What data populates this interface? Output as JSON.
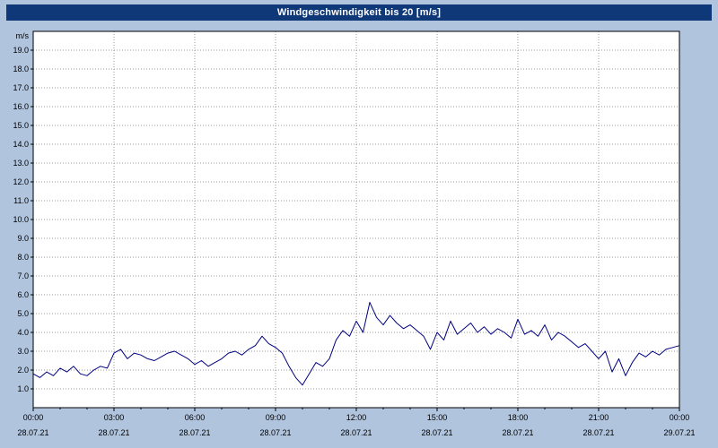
{
  "title": "Windgeschwindigkeit bis 20 [m/s]",
  "colors": {
    "background": "#b0c4de",
    "titlebar": "#0e3878",
    "title_text": "#ffffff",
    "plot_background": "#ffffff",
    "plot_frame": "#000000",
    "grid": "#999999",
    "line": "#000080",
    "tick_text": "#000000"
  },
  "chart_data": {
    "type": "line",
    "title": "Windgeschwindigkeit bis 20 [m/s]",
    "xlabel": "",
    "ylabel": "m/s",
    "ylim": [
      0,
      20
    ],
    "xlim_hours": [
      0,
      24
    ],
    "grid": "dotted",
    "legend": "none",
    "y_tick_labels": [
      "1.0",
      "2.0",
      "3.0",
      "4.0",
      "5.0",
      "6.0",
      "7.0",
      "8.0",
      "9.0",
      "10.0",
      "11.0",
      "12.0",
      "13.0",
      "14.0",
      "15.0",
      "16.0",
      "17.0",
      "18.0",
      "19.0"
    ],
    "x_ticks": [
      {
        "hour": 0,
        "time": "00:00",
        "date": "28.07.21"
      },
      {
        "hour": 3,
        "time": "03:00",
        "date": "28.07.21"
      },
      {
        "hour": 6,
        "time": "06:00",
        "date": "28.07.21"
      },
      {
        "hour": 9,
        "time": "09:00",
        "date": "28.07.21"
      },
      {
        "hour": 12,
        "time": "12:00",
        "date": "28.07.21"
      },
      {
        "hour": 15,
        "time": "15:00",
        "date": "28.07.21"
      },
      {
        "hour": 18,
        "time": "18:00",
        "date": "28.07.21"
      },
      {
        "hour": 21,
        "time": "21:00",
        "date": "28.07.21"
      },
      {
        "hour": 24,
        "time": "00:00",
        "date": "29.07.21"
      }
    ],
    "series": [
      {
        "name": "Windgeschwindigkeit",
        "unit": "m/s",
        "color": "#000080",
        "start_hour": 0,
        "interval_hours": 0.25,
        "values": [
          1.8,
          1.6,
          1.9,
          1.7,
          2.1,
          1.9,
          2.2,
          1.8,
          1.7,
          2.0,
          2.2,
          2.1,
          2.9,
          3.1,
          2.6,
          2.9,
          2.8,
          2.6,
          2.5,
          2.7,
          2.9,
          3.0,
          2.8,
          2.6,
          2.3,
          2.5,
          2.2,
          2.4,
          2.6,
          2.9,
          3.0,
          2.8,
          3.1,
          3.3,
          3.8,
          3.4,
          3.2,
          2.9,
          2.2,
          1.6,
          1.2,
          1.8,
          2.4,
          2.2,
          2.6,
          3.6,
          4.1,
          3.8,
          4.6,
          4.0,
          5.6,
          4.8,
          4.4,
          4.9,
          4.5,
          4.2,
          4.4,
          4.1,
          3.8,
          3.1,
          4.0,
          3.6,
          4.6,
          3.9,
          4.2,
          4.5,
          4.0,
          4.3,
          3.9,
          4.2,
          4.0,
          3.7,
          4.7,
          3.9,
          4.1,
          3.8,
          4.4,
          3.6,
          4.0,
          3.8,
          3.5,
          3.2,
          3.4,
          3.0,
          2.6,
          3.0,
          1.9,
          2.6,
          1.7,
          2.4,
          2.9,
          2.7,
          3.0,
          2.8,
          3.1,
          3.2,
          3.3
        ]
      }
    ]
  }
}
